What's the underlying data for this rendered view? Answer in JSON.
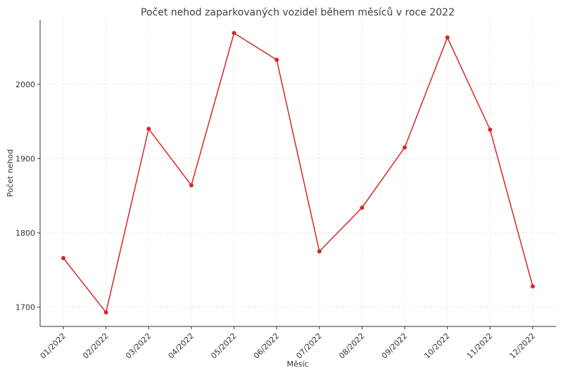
{
  "chart_data": {
    "type": "line",
    "title": "Počet nehod zaparkovaných vozidel během měsíců v roce 2022",
    "xlabel": "Měsíc",
    "ylabel": "Počet nehod",
    "categories": [
      "01/2022",
      "02/2022",
      "03/2022",
      "04/2022",
      "05/2022",
      "06/2022",
      "07/2022",
      "08/2022",
      "09/2022",
      "10/2022",
      "11/2022",
      "12/2022"
    ],
    "series": [
      {
        "values": [
          1766,
          1693,
          1940,
          1864,
          2069,
          2033,
          1775,
          1834,
          1915,
          2063,
          1939,
          1728
        ]
      }
    ],
    "yticks": [
      1700,
      1800,
      1900,
      2000
    ],
    "ylim": [
      1674,
      2087
    ],
    "grid": true,
    "line_color": "#d62728",
    "marker_color": "#d62728"
  }
}
